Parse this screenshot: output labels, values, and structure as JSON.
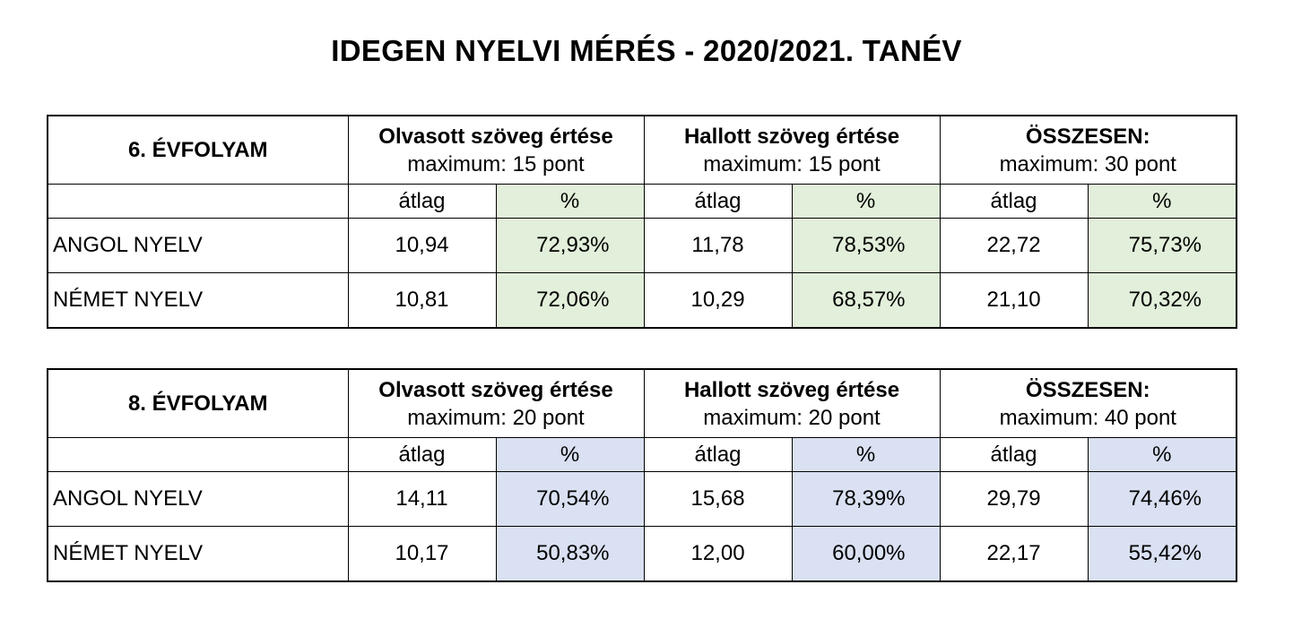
{
  "title": "IDEGEN NYELVI MÉRÉS - 2020/2021. TANÉV",
  "colors": {
    "grade6_pct_fill": "#e2efda",
    "grade8_pct_fill": "#d9e1f2"
  },
  "tables": [
    {
      "grade": "6. ÉVFOLYAM",
      "sections": [
        {
          "title": "Olvasott szöveg értése",
          "max": "maximum: 15 pont"
        },
        {
          "title": "Hallott szöveg értése",
          "max": "maximum: 15 pont"
        },
        {
          "title": "ÖSSZESEN:",
          "max": "maximum: 30 pont"
        }
      ],
      "sub_headers": [
        "átlag",
        "%",
        "átlag",
        "%",
        "átlag",
        "%"
      ],
      "rows": [
        {
          "language": "ANGOL NYELV",
          "values": [
            "10,94",
            "72,93%",
            "11,78",
            "78,53%",
            "22,72",
            "75,73%"
          ]
        },
        {
          "language": "NÉMET NYELV",
          "values": [
            "10,81",
            "72,06%",
            "10,29",
            "68,57%",
            "21,10",
            "70,32%"
          ]
        }
      ]
    },
    {
      "grade": "8. ÉVFOLYAM",
      "sections": [
        {
          "title": "Olvasott szöveg értése",
          "max": "maximum: 20 pont"
        },
        {
          "title": "Hallott szöveg értése",
          "max": "maximum: 20 pont"
        },
        {
          "title": "ÖSSZESEN:",
          "max": "maximum: 40 pont"
        }
      ],
      "sub_headers": [
        "átlag",
        "%",
        "átlag",
        "%",
        "átlag",
        "%"
      ],
      "rows": [
        {
          "language": "ANGOL NYELV",
          "values": [
            "14,11",
            "70,54%",
            "15,68",
            "78,39%",
            "29,79",
            "74,46%"
          ]
        },
        {
          "language": "NÉMET NYELV",
          "values": [
            "10,17",
            "50,83%",
            "12,00",
            "60,00%",
            "22,17",
            "55,42%"
          ]
        }
      ]
    }
  ]
}
